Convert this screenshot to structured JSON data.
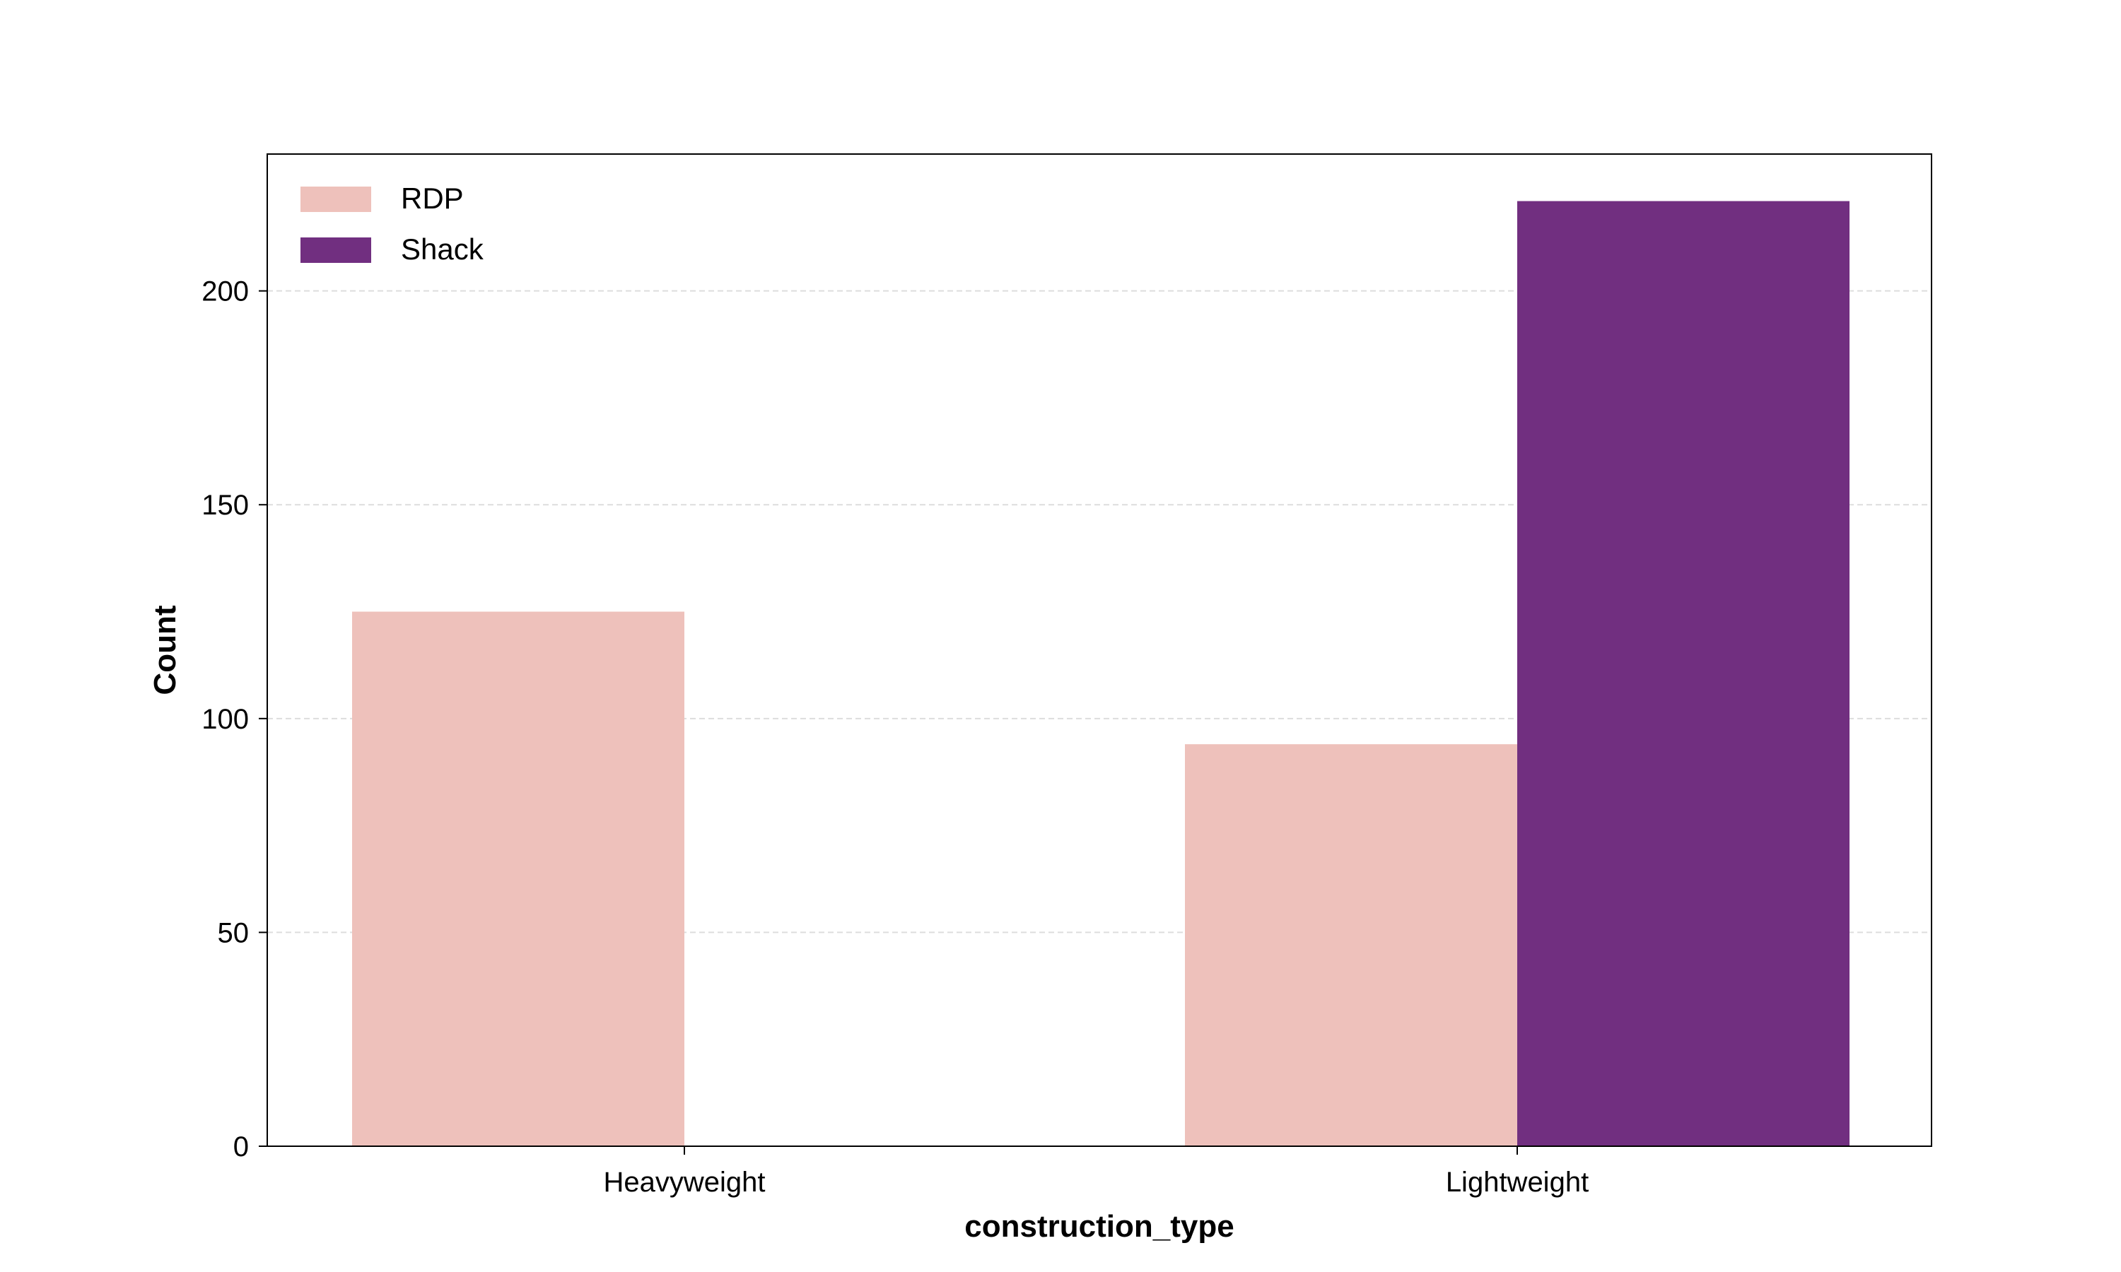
{
  "chart_data": {
    "type": "bar",
    "xlabel": "construction_type",
    "ylabel": "Count",
    "categories": [
      "Heavyweight",
      "Lightweight"
    ],
    "series": [
      {
        "name": "RDP",
        "values": [
          125,
          94
        ],
        "color": "#eec1bb"
      },
      {
        "name": "Shack",
        "values": [
          0,
          221
        ],
        "color": "#712f80"
      }
    ],
    "ylim": [
      0,
      232
    ],
    "yticks": [
      0,
      50,
      100,
      150,
      200
    ],
    "grid": true,
    "legend_position": "top-left"
  }
}
